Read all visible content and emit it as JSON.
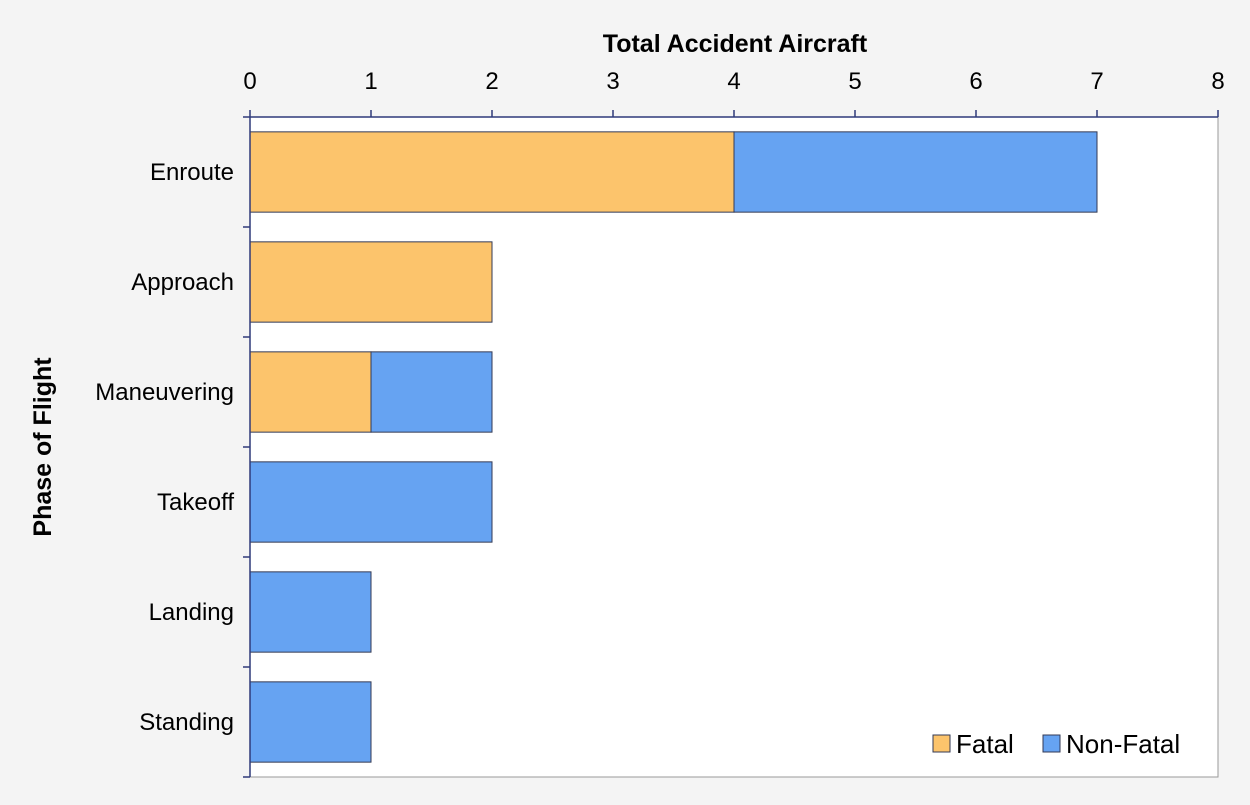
{
  "chart_data": {
    "type": "bar",
    "orientation": "horizontal",
    "stacked": true,
    "xlabel": "Total Accident Aircraft",
    "ylabel": "Phase of Flight",
    "xlim": [
      0,
      8
    ],
    "x_ticks": [
      0,
      1,
      2,
      3,
      4,
      5,
      6,
      7,
      8
    ],
    "x_axis_position": "top",
    "categories": [
      "Enroute",
      "Approach",
      "Maneuvering",
      "Takeoff",
      "Landing",
      "Standing"
    ],
    "series": [
      {
        "name": "Fatal",
        "color": "#fcc46c",
        "values": [
          4,
          2,
          1,
          0,
          0,
          0
        ]
      },
      {
        "name": "Non-Fatal",
        "color": "#66a3f2",
        "values": [
          3,
          0,
          1,
          2,
          1,
          1
        ]
      }
    ],
    "grid": false,
    "legend": {
      "position": "bottom-right"
    },
    "colors": {
      "background": "#f4f4f4",
      "plot_background": "#ffffff",
      "axis": "#2e3a7a",
      "bar_border": "#333a55"
    }
  }
}
